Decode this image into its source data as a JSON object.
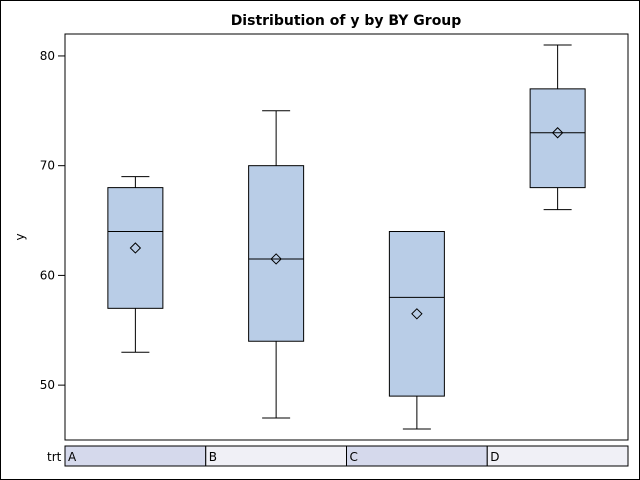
{
  "chart_data": {
    "type": "box",
    "title": "Distribution of y by BY Group",
    "ylabel": "y",
    "xlabel": "",
    "ylim": [
      45,
      82
    ],
    "yticks": [
      50,
      60,
      70,
      80
    ],
    "grid": false,
    "legend": "none",
    "group_variable_label": "trt",
    "categories": [
      "A",
      "B",
      "C",
      "D"
    ],
    "boxes": [
      {
        "category": "A",
        "min": 53,
        "q1": 57,
        "median": 64,
        "q3": 68,
        "max": 69,
        "mean": 62.5
      },
      {
        "category": "B",
        "min": 47,
        "q1": 54,
        "median": 61.5,
        "q3": 70,
        "max": 75,
        "mean": 61.5
      },
      {
        "category": "C",
        "min": 46,
        "q1": 49,
        "median": 58,
        "q3": 64,
        "max": 64,
        "mean": 56.5
      },
      {
        "category": "D",
        "min": 66,
        "q1": 68,
        "median": 73,
        "q3": 77,
        "max": 81,
        "mean": 73
      }
    ],
    "colors": {
      "box_fill": "#b9cde7",
      "outline": "#000000",
      "cell_fill_odd": "#d5d9ec",
      "cell_fill_even": "#f0f0f6"
    }
  }
}
